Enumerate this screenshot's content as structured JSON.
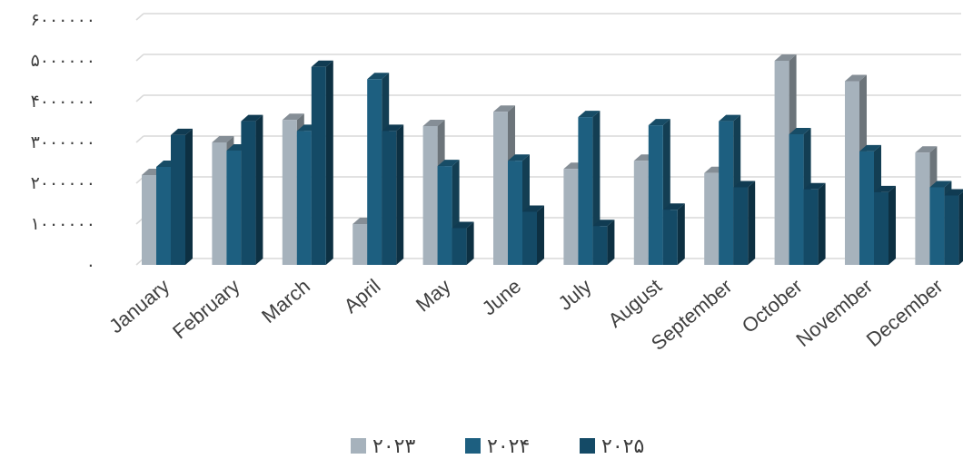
{
  "chart_data": {
    "type": "bar",
    "categories": [
      "January",
      "February",
      "March",
      "April",
      "May",
      "June",
      "July",
      "August",
      "September",
      "October",
      "November",
      "December"
    ],
    "series": [
      {
        "name": "۲۰۲۳",
        "color": "#a6b2bc",
        "values": [
          2200000,
          3000000,
          3550000,
          1000000,
          3400000,
          3750000,
          2350000,
          2550000,
          2250000,
          5000000,
          4500000,
          2750000
        ]
      },
      {
        "name": "۲۰۲۴",
        "color": "#1d5f80",
        "values": [
          2400000,
          2800000,
          3280000,
          4550000,
          2420000,
          2550000,
          3620000,
          3420000,
          3520000,
          3200000,
          2780000,
          1900000
        ]
      },
      {
        "name": "۲۰۲۵",
        "color": "#144a66",
        "values": [
          3180000,
          3520000,
          4850000,
          3280000,
          900000,
          1300000,
          950000,
          1350000,
          1900000,
          1850000,
          1780000,
          1700000
        ]
      }
    ],
    "yticks": [
      "۰",
      "۱۰۰۰۰۰۰",
      "۲۰۰۰۰۰۰",
      "۳۰۰۰۰۰۰",
      "۴۰۰۰۰۰۰",
      "۵۰۰۰۰۰۰",
      "۶۰۰۰۰۰۰"
    ],
    "ylim": [
      0,
      6000000
    ],
    "grid": true,
    "legend_position": "bottom"
  }
}
